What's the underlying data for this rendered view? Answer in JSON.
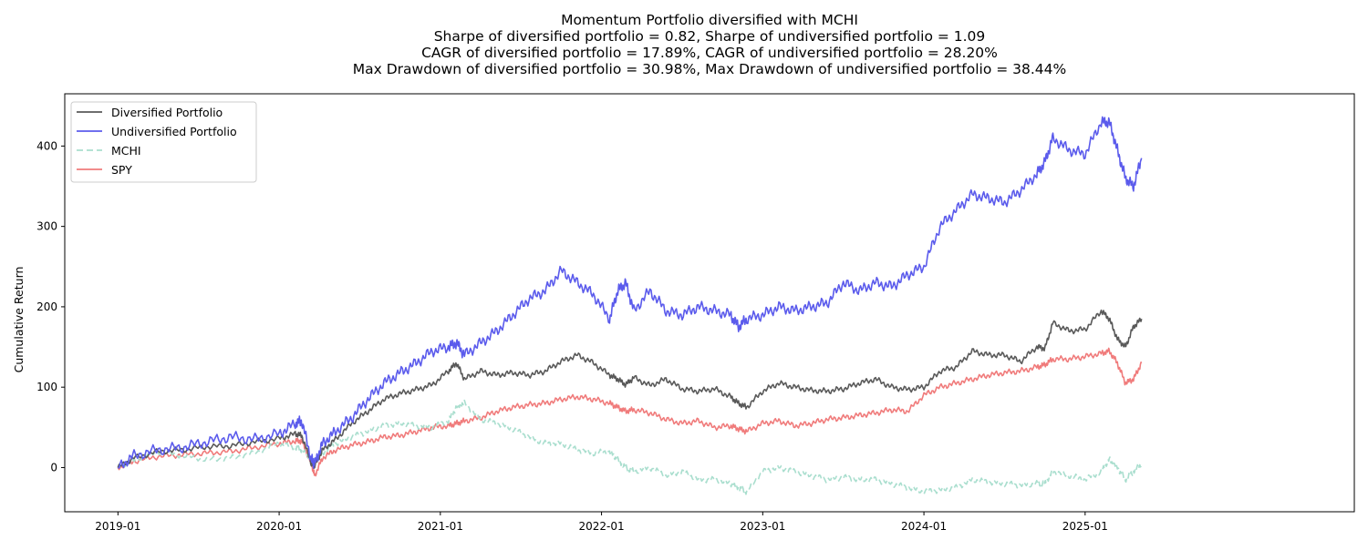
{
  "chart_data": {
    "type": "line",
    "title_lines": [
      "Momentum Portfolio diversified with MCHI",
      "Sharpe of diversified portfolio = 0.82, Sharpe of undiversified portfolio = 1.09",
      "CAGR of diversified portfolio = 17.89%, CAGR of undiversified portfolio = 28.20%",
      "Max Drawdown of diversified portfolio = 30.98%, Max Drawdown of undiversified portfolio = 38.44%"
    ],
    "xlabel": "",
    "ylabel": "Cumulative Return",
    "x_tick_labels": [
      "2019-01",
      "2020-01",
      "2021-01",
      "2022-01",
      "2023-01",
      "2024-01",
      "2025-01"
    ],
    "y_ticks": [
      0,
      100,
      200,
      300,
      400
    ],
    "ylim": [
      -55,
      465
    ],
    "xlim": [
      2018.67,
      2026.67
    ],
    "grid": false,
    "legend_position": "top-left",
    "x": [
      2019.0,
      2019.1,
      2019.25,
      2019.4,
      2019.55,
      2019.7,
      2019.85,
      2020.0,
      2020.1,
      2020.14,
      2020.2,
      2020.22,
      2020.27,
      2020.35,
      2020.45,
      2020.55,
      2020.65,
      2020.75,
      2020.85,
      2020.95,
      2021.05,
      2021.1,
      2021.15,
      2021.25,
      2021.35,
      2021.45,
      2021.55,
      2021.65,
      2021.75,
      2021.85,
      2021.95,
      2022.05,
      2022.1,
      2022.15,
      2022.2,
      2022.3,
      2022.4,
      2022.5,
      2022.6,
      2022.7,
      2022.8,
      2022.85,
      2022.9,
      2023.0,
      2023.1,
      2023.2,
      2023.3,
      2023.4,
      2023.5,
      2023.6,
      2023.7,
      2023.8,
      2023.9,
      2024.0,
      2024.1,
      2024.2,
      2024.3,
      2024.4,
      2024.5,
      2024.6,
      2024.7,
      2024.75,
      2024.8,
      2024.9,
      2025.0,
      2025.1,
      2025.15,
      2025.2,
      2025.25,
      2025.3,
      2025.35
    ],
    "series": [
      {
        "name": "Diversified Portfolio",
        "color": "#595959",
        "dash": "",
        "values": [
          0,
          12,
          20,
          22,
          26,
          27,
          32,
          36,
          42,
          40,
          5,
          2,
          22,
          35,
          55,
          70,
          85,
          92,
          97,
          103,
          120,
          130,
          110,
          120,
          115,
          118,
          115,
          120,
          132,
          140,
          130,
          115,
          110,
          103,
          112,
          102,
          110,
          98,
          95,
          98,
          88,
          80,
          75,
          95,
          105,
          100,
          96,
          95,
          98,
          105,
          110,
          100,
          97,
          100,
          120,
          125,
          145,
          140,
          140,
          132,
          150,
          148,
          180,
          170,
          172,
          195,
          185,
          160,
          150,
          175,
          185
        ]
      },
      {
        "name": "Undiversified Portfolio",
        "color": "#5b5bec",
        "dash": "",
        "values": [
          0,
          15,
          22,
          25,
          32,
          38,
          35,
          42,
          55,
          58,
          10,
          5,
          30,
          45,
          62,
          85,
          105,
          118,
          130,
          145,
          150,
          155,
          140,
          155,
          170,
          190,
          210,
          220,
          245,
          230,
          215,
          185,
          220,
          230,
          195,
          220,
          195,
          190,
          200,
          195,
          190,
          175,
          185,
          190,
          200,
          195,
          200,
          205,
          230,
          220,
          230,
          225,
          240,
          250,
          300,
          320,
          340,
          335,
          330,
          345,
          365,
          380,
          410,
          395,
          390,
          430,
          430,
          395,
          360,
          350,
          385
        ]
      },
      {
        "name": "MCHI",
        "color": "#a9dece",
        "dash": "7,4",
        "values": [
          0,
          10,
          20,
          15,
          10,
          12,
          18,
          30,
          25,
          22,
          10,
          8,
          18,
          30,
          38,
          45,
          52,
          55,
          52,
          50,
          58,
          75,
          80,
          60,
          55,
          48,
          38,
          30,
          30,
          22,
          18,
          20,
          10,
          0,
          -5,
          0,
          -10,
          -5,
          -15,
          -15,
          -20,
          -25,
          -30,
          -5,
          0,
          -5,
          -10,
          -15,
          -12,
          -15,
          -15,
          -20,
          -25,
          -30,
          -28,
          -25,
          -15,
          -18,
          -20,
          -22,
          -20,
          -20,
          -5,
          -10,
          -15,
          -5,
          10,
          0,
          -15,
          -5,
          5
        ]
      },
      {
        "name": "SPY",
        "color": "#f07b7b",
        "dash": "",
        "values": [
          0,
          8,
          14,
          16,
          18,
          20,
          25,
          30,
          33,
          33,
          5,
          -10,
          12,
          22,
          28,
          32,
          38,
          40,
          45,
          50,
          52,
          55,
          58,
          62,
          70,
          75,
          78,
          80,
          85,
          88,
          85,
          80,
          75,
          70,
          72,
          68,
          60,
          55,
          58,
          50,
          52,
          48,
          45,
          55,
          58,
          52,
          55,
          60,
          62,
          65,
          68,
          72,
          70,
          90,
          100,
          105,
          110,
          115,
          118,
          120,
          125,
          128,
          135,
          135,
          138,
          142,
          145,
          130,
          105,
          110,
          130
        ]
      }
    ]
  }
}
